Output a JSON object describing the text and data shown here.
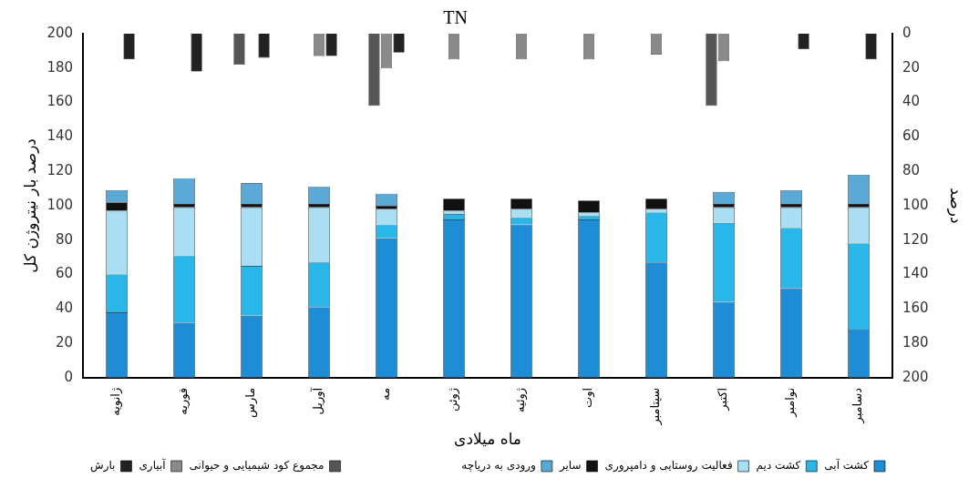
{
  "chart_data": [
    {
      "type": "bar",
      "title": "TN",
      "xlabel": "ماه میلادی",
      "ylabel": "درصد بار نیتروژن کل",
      "categories": [
        "ژانویه",
        "فوریه",
        "مارس",
        "آوریل",
        "مه",
        "ژوئن",
        "ژوئیه",
        "اوت",
        "سپتامبر",
        "اکتبر",
        "نوامبر",
        "دسامبر"
      ],
      "stacked": true,
      "series": [
        {
          "name": "کشت آبی",
          "color": "#1f8dd6",
          "values": [
            38,
            32,
            36,
            41,
            81,
            92,
            89,
            92,
            67,
            44,
            52,
            28
          ]
        },
        {
          "name": "کشت دیم",
          "color": "#29b6e8",
          "values": [
            22,
            39,
            29,
            26,
            8,
            3,
            4,
            2,
            29,
            46,
            35,
            50
          ]
        },
        {
          "name": "فعالیت روستایی و دامپروری",
          "color": "#a9def3",
          "values": [
            37,
            28,
            34,
            32,
            9,
            2,
            5,
            2,
            2,
            9,
            12,
            21
          ]
        },
        {
          "name": "سایر",
          "color": "#111111",
          "values": [
            5,
            2,
            2,
            2,
            2,
            7,
            6,
            7,
            6,
            2,
            2,
            2
          ]
        },
        {
          "name": "ورودی به دریاچه",
          "color": "#5aa9d6",
          "values": [
            7,
            15,
            12,
            10,
            7,
            0,
            0,
            0,
            0,
            7,
            8,
            17
          ]
        }
      ],
      "ylim": [
        0,
        200
      ],
      "yticks": [
        0,
        20,
        40,
        60,
        80,
        100,
        120,
        140,
        160,
        180,
        200
      ],
      "grid": false,
      "legend": "bottom right"
    },
    {
      "type": "bar",
      "ylabel": "درصد",
      "categories": [
        null,
        null,
        null,
        null,
        null,
        null,
        null,
        null,
        null,
        null,
        null,
        null
      ],
      "series": [
        {
          "name": "مجموع کود شیمیایی و حیوانی",
          "color": "#555555",
          "values": [
            null,
            null,
            18,
            0,
            42,
            0,
            null,
            null,
            null,
            42,
            0,
            null
          ]
        },
        {
          "name": "آبیاری",
          "color": "#8a8a8a",
          "values": [
            null,
            null,
            0,
            13,
            20,
            15,
            15,
            15,
            12,
            16,
            0,
            null
          ]
        },
        {
          "name": "بارش",
          "color": "#222222",
          "values": [
            15,
            22,
            14,
            13,
            11,
            0,
            0,
            0,
            0,
            0,
            9,
            15
          ]
        }
      ],
      "ylim": [
        200,
        0
      ],
      "yticks": [
        0,
        20,
        40,
        60,
        80,
        100,
        120,
        140,
        160,
        180,
        200
      ],
      "grid": false,
      "legend": "bottom left",
      "tick_labels": "y"
    }
  ]
}
